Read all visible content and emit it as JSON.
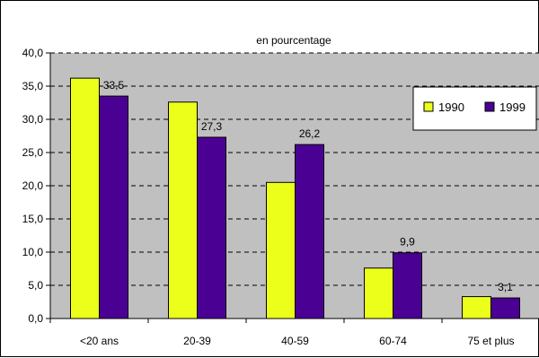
{
  "chart_data": {
    "type": "bar",
    "title": "en pourcentage",
    "categories": [
      "<20 ans",
      "20-39",
      "40-59",
      "60-74",
      "75 et plus"
    ],
    "series": [
      {
        "name": "1990",
        "color": "#ecff1a",
        "values": [
          36.2,
          32.6,
          20.5,
          7.6,
          3.3
        ]
      },
      {
        "name": "1999",
        "color": "#4b0094",
        "values": [
          33.5,
          27.3,
          26.2,
          9.9,
          3.1
        ]
      }
    ],
    "data_labels": [
      "33,5",
      "27,3",
      "26,2",
      "9,9",
      "3,1"
    ],
    "y_ticks": [
      "0,0",
      "5,0",
      "10,0",
      "15,0",
      "20,0",
      "25,0",
      "30,0",
      "35,0",
      "40,0"
    ],
    "ylim": [
      0,
      40
    ],
    "grid": true,
    "plot_background": "#c0c0c0",
    "legend_position": "top-right"
  }
}
